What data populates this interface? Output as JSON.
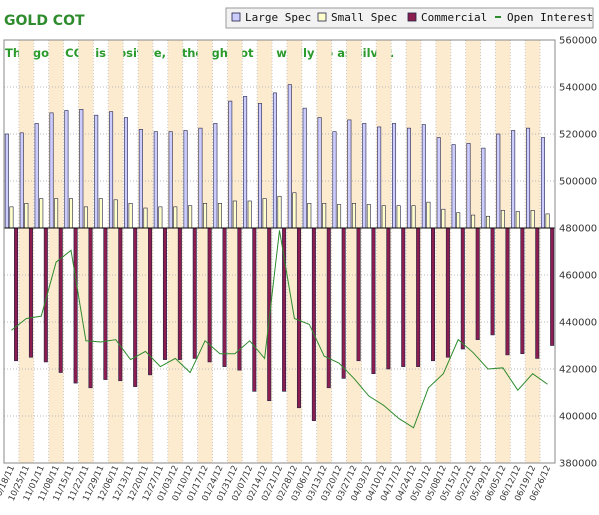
{
  "chart_data": {
    "type": "bar",
    "title": "GOLD COT",
    "annotation": "The gold COT is positive, although not so wildly so as silver.",
    "yaxis_position": "right",
    "ylim": [
      380000,
      560000
    ],
    "yticks": [
      380000,
      400000,
      420000,
      440000,
      460000,
      480000,
      500000,
      520000,
      540000,
      560000
    ],
    "ytick_labels": [
      "380000",
      "400000",
      "420000",
      "440000",
      "460000",
      "480000",
      "500000",
      "520000",
      "540000",
      "560000"
    ],
    "baseline": 480000,
    "grid": true,
    "legend_position": "top-right",
    "categories": [
      "10/18/11",
      "10/25/11",
      "11/01/11",
      "11/08/11",
      "11/15/11",
      "11/22/11",
      "11/29/11",
      "12/06/11",
      "12/13/11",
      "12/20/11",
      "12/27/11",
      "01/03/12",
      "01/10/12",
      "01/17/12",
      "01/24/12",
      "01/31/12",
      "02/07/12",
      "02/14/12",
      "02/21/12",
      "02/28/12",
      "03/06/12",
      "03/13/12",
      "03/20/12",
      "03/27/12",
      "04/03/12",
      "04/10/12",
      "04/17/12",
      "04/24/12",
      "05/01/12",
      "05/08/12",
      "05/15/12",
      "05/22/12",
      "05/29/12",
      "06/05/12",
      "06/12/12",
      "06/19/12",
      "06/26/12"
    ],
    "xtick_labels": [
      "10/18/11",
      "10/25/11",
      "11/01/11",
      "11/08/11",
      "11/15/11",
      "11/22/11",
      "11/29/11",
      "12/06/11",
      "12/13/11",
      "12/20/11",
      "12/27/11",
      "01/03/12",
      "01/10/12",
      "01/17/12",
      "01/24/12",
      "01/31/12",
      "02/07/12",
      "02/14/12",
      "02/21/12",
      "02/28/12",
      "03/06/12",
      "03/13/12",
      "03/20/12",
      "03/27/12",
      "04/03/12",
      "04/10/12",
      "04/17/12",
      "04/24/12",
      "05/01/12",
      "05/08/12",
      "05/15/12",
      "05/22/12",
      "05/29/12",
      "06/05/12",
      "06/12/12",
      "06/19/12",
      "06/26/12"
    ],
    "series": [
      {
        "name": "Large Spec",
        "kind": "bar",
        "color": "#ccccff",
        "values": [
          520000,
          520500,
          524500,
          529000,
          530000,
          530500,
          528000,
          529500,
          527000,
          522000,
          521000,
          521000,
          521500,
          522500,
          524500,
          534000,
          536000,
          533000,
          537500,
          541000,
          531000,
          527000,
          521000,
          526000,
          524500,
          523000,
          524500,
          522500,
          524000,
          518500,
          515500,
          516000,
          514000,
          520000,
          521500,
          522500,
          518500
        ]
      },
      {
        "name": "Small Spec",
        "kind": "bar",
        "color": "#ffffcc",
        "values": [
          489000,
          490500,
          492500,
          492500,
          492500,
          489000,
          492500,
          492000,
          490500,
          488500,
          489000,
          489000,
          489500,
          490500,
          490500,
          491500,
          491500,
          492500,
          493500,
          495000,
          490500,
          490500,
          490000,
          490500,
          490000,
          489500,
          489500,
          489500,
          491000,
          488000,
          486500,
          485500,
          485000,
          487500,
          487000,
          487500,
          486000
        ]
      },
      {
        "name": "Commercial",
        "kind": "bar",
        "color": "#8b1e4f",
        "values": [
          423500,
          425000,
          423000,
          418500,
          414000,
          412000,
          415500,
          415000,
          412500,
          417500,
          424000,
          424000,
          424500,
          423000,
          421000,
          419500,
          410500,
          406500,
          410500,
          403500,
          398000,
          412000,
          416000,
          423500,
          418000,
          420000,
          421000,
          421000,
          423500,
          425000,
          428500,
          432500,
          434500,
          426000,
          426500,
          424500,
          430000
        ]
      },
      {
        "name": "Open Interest",
        "kind": "line",
        "color": "#2e8b2e",
        "values": [
          436500,
          441500,
          442500,
          465500,
          470500,
          432000,
          431500,
          432500,
          424000,
          427500,
          421000,
          424500,
          418500,
          432000,
          426500,
          426500,
          432000,
          424500,
          479000,
          441500,
          439000,
          425500,
          422500,
          416000,
          408500,
          404500,
          399000,
          395000,
          412000,
          418000,
          432500,
          427000,
          420000,
          420500,
          411000,
          418000,
          413500
        ]
      }
    ]
  }
}
